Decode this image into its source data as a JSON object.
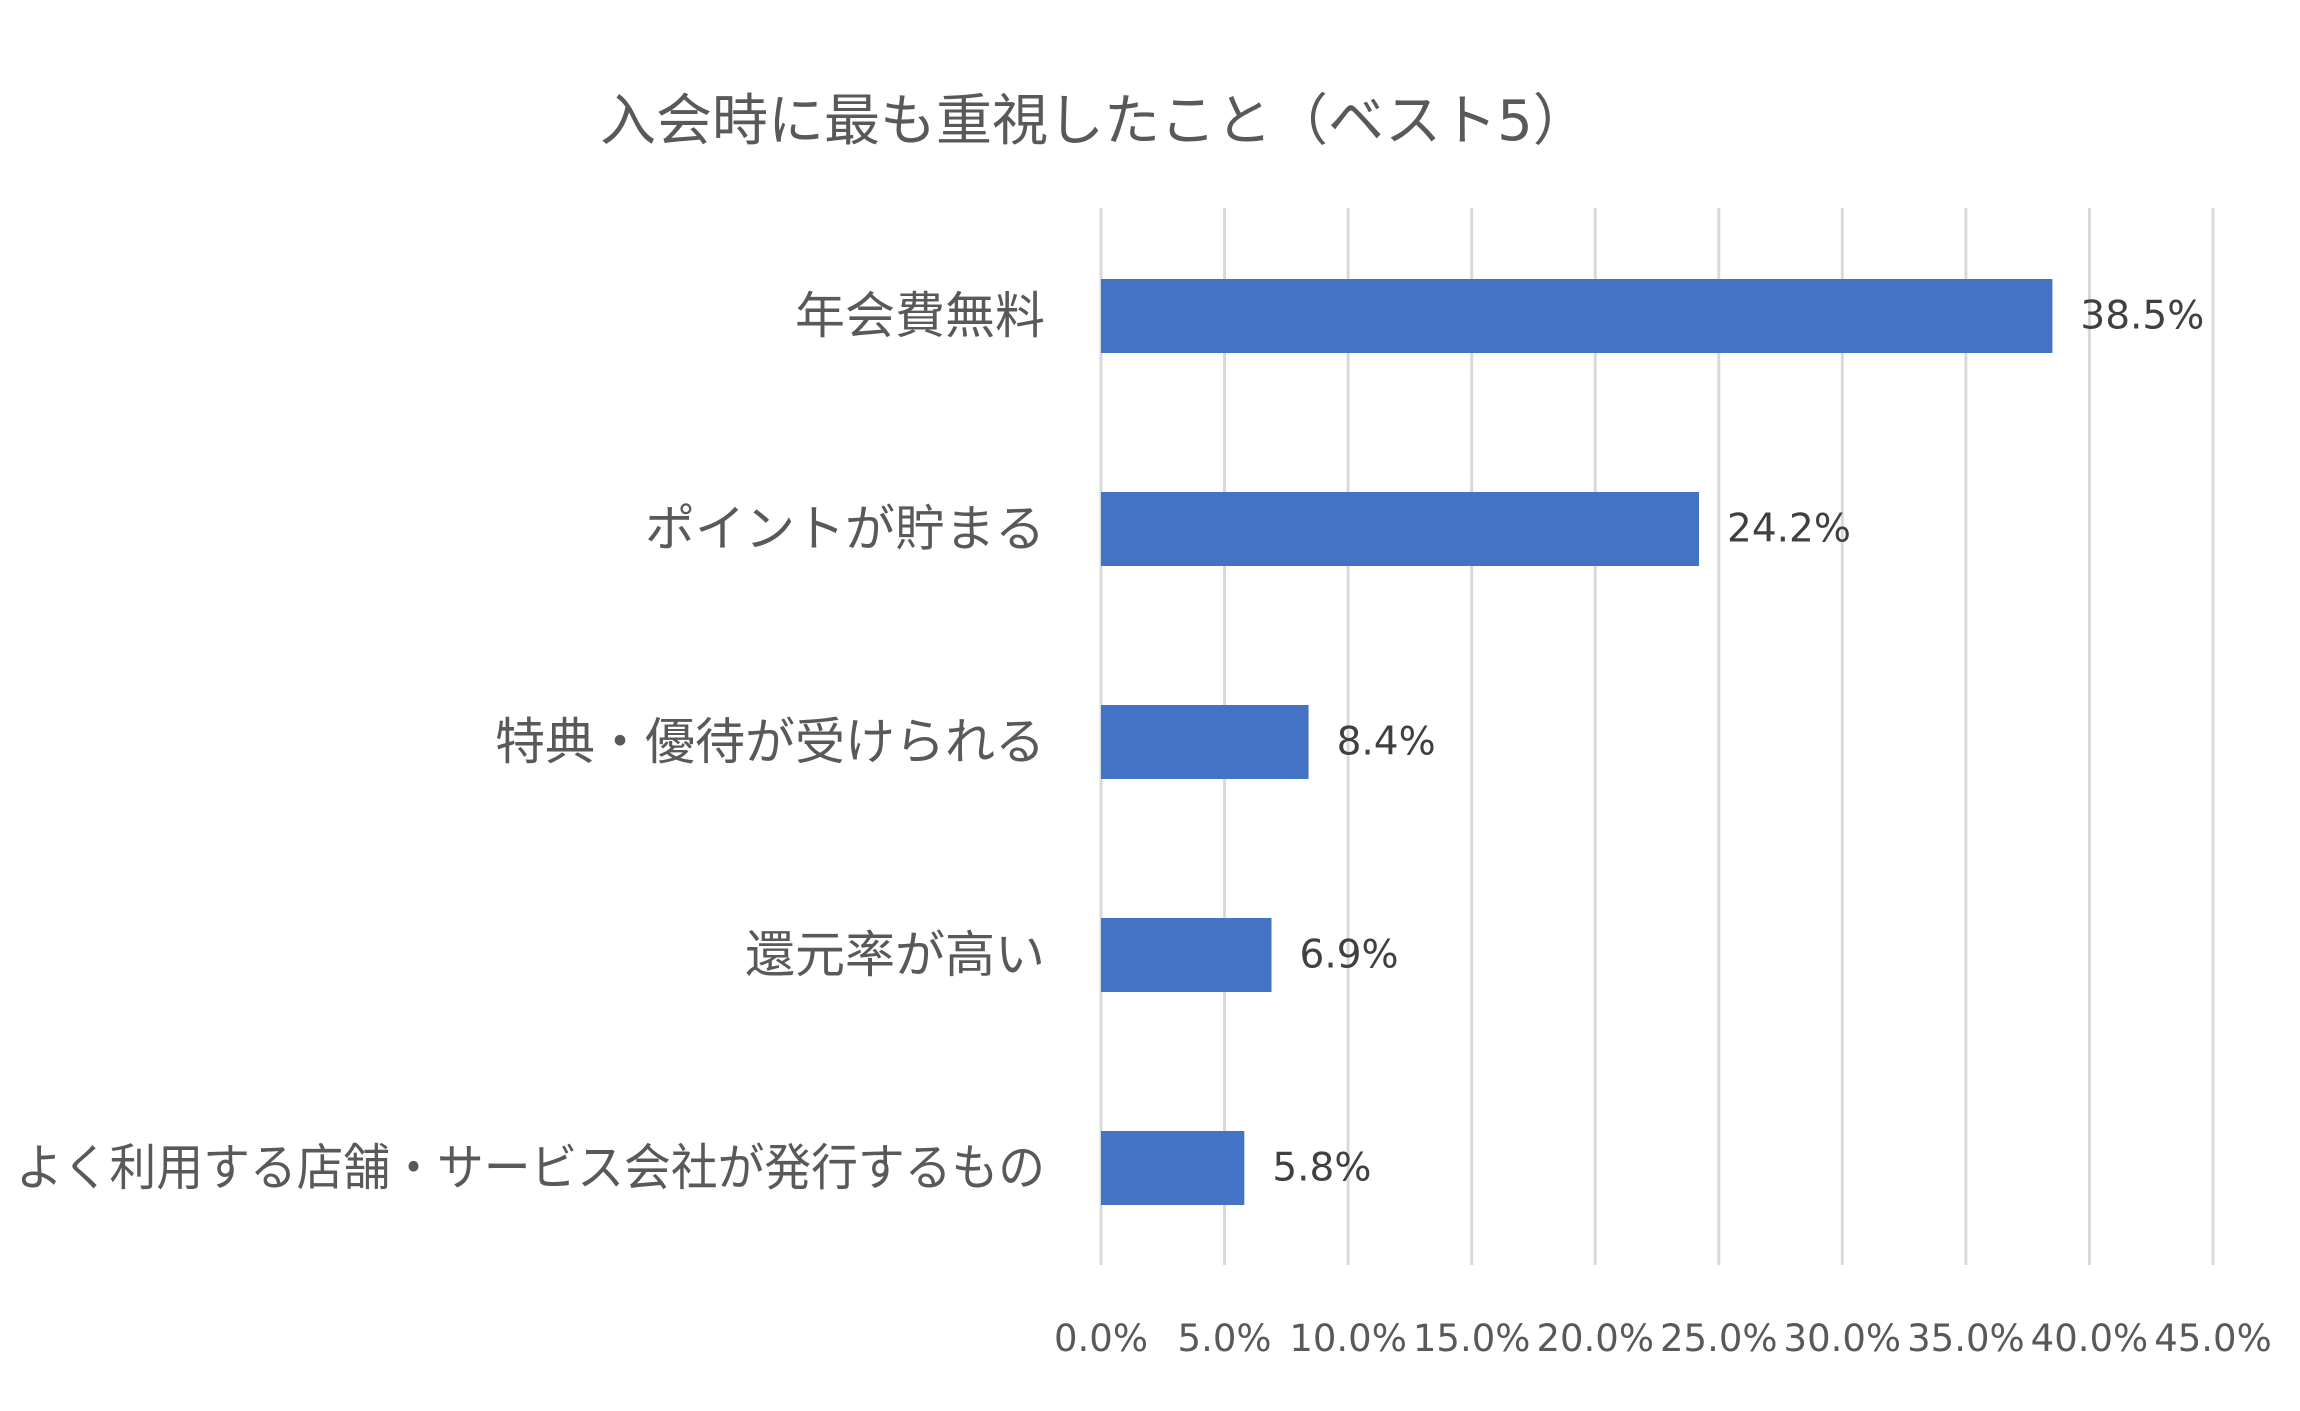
{
  "chart_data": {
    "type": "bar",
    "orientation": "horizontal",
    "title": "入会時に最も重視したこと（ベスト5）",
    "categories": [
      "年会費無料",
      "ポイントが貯まる",
      "特典・優待が受けられる",
      "還元率が高い",
      "よく利用する店舗・サービス会社が発行するもの"
    ],
    "values": [
      38.5,
      24.2,
      8.4,
      6.9,
      5.8
    ],
    "data_labels": [
      "38.5%",
      "24.2%",
      "8.4%",
      "6.9%",
      "5.8%"
    ],
    "xlim": [
      0,
      45
    ],
    "x_ticks": [
      0,
      5,
      10,
      15,
      20,
      25,
      30,
      35,
      40,
      45
    ],
    "x_tick_labels": [
      "0.0%",
      "5.0%",
      "10.0%",
      "15.0%",
      "20.0%",
      "25.0%",
      "30.0%",
      "35.0%",
      "40.0%",
      "45.0%"
    ],
    "xlabel": "",
    "ylabel": "",
    "grid": "vertical",
    "legend": "none",
    "bar_color": "#4472C4"
  }
}
